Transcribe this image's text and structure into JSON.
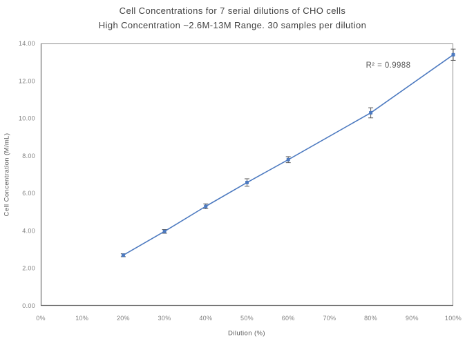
{
  "chart_data": {
    "type": "line",
    "title": "Cell Concentrations for 7 serial dilutions of CHO cells",
    "subtitle": "High Concentration ~2.6M-13M Range. 30 samples per dilution",
    "xlabel": "Dilution (%)",
    "ylabel": "Cell Concentration (M/mL)",
    "annotation": "R² = 0.9988",
    "xlim": [
      0,
      100
    ],
    "ylim": [
      0,
      14
    ],
    "x_tick_values": [
      0,
      10,
      20,
      30,
      40,
      50,
      60,
      70,
      80,
      90,
      100
    ],
    "x_tick_labels": [
      "0%",
      "10%",
      "20%",
      "30%",
      "40%",
      "50%",
      "60%",
      "70%",
      "80%",
      "90%",
      "100%"
    ],
    "y_tick_values": [
      0,
      2,
      4,
      6,
      8,
      10,
      12,
      14
    ],
    "y_tick_labels": [
      "0.00",
      "2.00",
      "4.00",
      "6.00",
      "8.00",
      "10.00",
      "12.00",
      "14.00"
    ],
    "grid": false,
    "legend": false,
    "series": [
      {
        "x": [
          20,
          30,
          40,
          50,
          60,
          80,
          100
        ],
        "y": [
          2.7,
          3.97,
          5.31,
          6.58,
          7.8,
          10.3,
          13.4
        ],
        "y_err": [
          0.08,
          0.1,
          0.13,
          0.2,
          0.16,
          0.27,
          0.3
        ]
      }
    ],
    "colors": {
      "line": "#4d7ac0",
      "marker": "#4d7ac0",
      "error_bar": "#595959",
      "plot_border": "#8c8c8c",
      "axis_line": "#6e6e6e",
      "tick_text": "#7f7f7f",
      "title_text": "#404040",
      "axis_title_text": "#595959"
    }
  }
}
